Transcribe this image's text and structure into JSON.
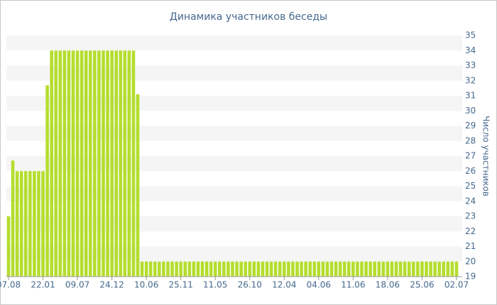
{
  "chart_data": {
    "type": "bar",
    "title": "Динамика участников беседы",
    "y_label": "Число участников",
    "color": "#b5dd2f",
    "categories": [
      "07.08",
      null,
      null,
      null,
      null,
      null,
      null,
      null,
      "22.01",
      null,
      null,
      null,
      null,
      null,
      null,
      null,
      "09.07",
      null,
      null,
      null,
      null,
      null,
      null,
      null,
      "24.12",
      null,
      null,
      null,
      null,
      null,
      null,
      null,
      "10.06",
      null,
      null,
      null,
      null,
      null,
      null,
      null,
      "25.11",
      null,
      null,
      null,
      null,
      null,
      null,
      null,
      "11.05",
      null,
      null,
      null,
      null,
      null,
      null,
      null,
      "26.10",
      null,
      null,
      null,
      null,
      null,
      null,
      null,
      "12.04",
      null,
      null,
      null,
      null,
      null,
      null,
      null,
      "04.06",
      null,
      null,
      null,
      null,
      null,
      null,
      null,
      "11.06",
      null,
      null,
      null,
      null,
      null,
      null,
      null,
      "18.06",
      null,
      null,
      null,
      null,
      null,
      null,
      null,
      "25.06",
      null,
      null,
      null,
      null,
      null,
      null,
      null,
      "02.07"
    ],
    "values": [
      23,
      26.7,
      26,
      26,
      26,
      26,
      26,
      26,
      26,
      31.7,
      34,
      34,
      34,
      34,
      34,
      34,
      34,
      34,
      34,
      34,
      34,
      34,
      34,
      34,
      34,
      34,
      34,
      34,
      34,
      34,
      31.1,
      20,
      20,
      20,
      20,
      20,
      20,
      20,
      20,
      20,
      20,
      20,
      20,
      20,
      20,
      20,
      20,
      20,
      20,
      20,
      20,
      20,
      20,
      20,
      20,
      20,
      20,
      20,
      20,
      20,
      20,
      20,
      20,
      20,
      20,
      20,
      20,
      20,
      20,
      20,
      20,
      20,
      20,
      20,
      20,
      20,
      20,
      20,
      20,
      20,
      20,
      20,
      20,
      20,
      20,
      20,
      20,
      20,
      20,
      20,
      20,
      20,
      20,
      20,
      20,
      20,
      20,
      20,
      20,
      20,
      20,
      20,
      20,
      20,
      20
    ],
    "ylim": [
      19,
      35
    ],
    "yticks": [
      19,
      20,
      21,
      22,
      23,
      24,
      25,
      26,
      27,
      28,
      29,
      30,
      31,
      32,
      33,
      34,
      35
    ],
    "grid": true
  }
}
